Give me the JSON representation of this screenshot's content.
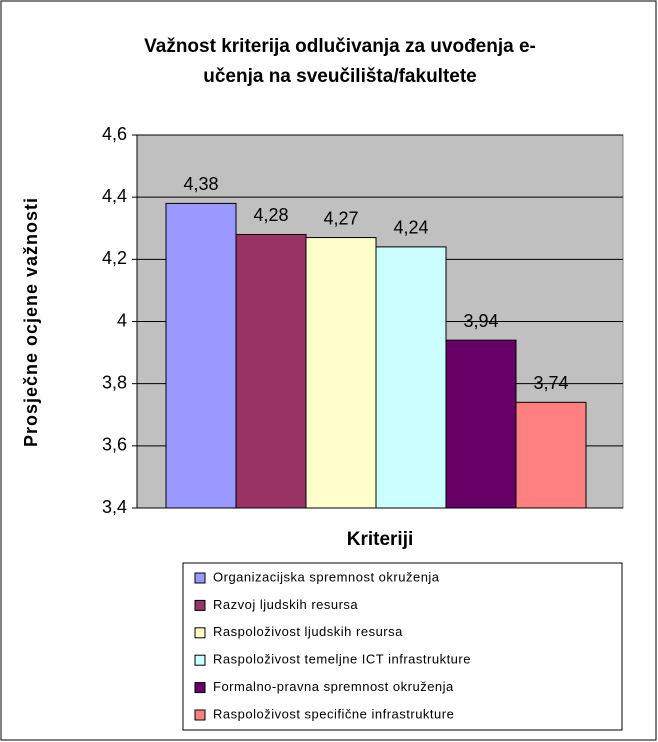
{
  "chart_data": {
    "type": "bar",
    "title": [
      "Važnost kriterija odlučivanja za uvođenja e-",
      "učenja na sveučilišta/fakultete"
    ],
    "y_label": "Prosječne ocjene važnosti",
    "x_label": "Kriteriji",
    "series": [
      {
        "name": "Organizacijska spremnost okruženja",
        "color": "#9999ff",
        "values": [
          4.38
        ],
        "value_labels": [
          "4,38"
        ]
      },
      {
        "name": "Razvoj ljudskih resursa",
        "color": "#993366",
        "values": [
          4.28
        ],
        "value_labels": [
          "4,28"
        ]
      },
      {
        "name": "Raspoloživost ljudskih resursa",
        "color": "#ffffcc",
        "values": [
          4.27
        ],
        "value_labels": [
          "4,27"
        ]
      },
      {
        "name": "Raspoloživost temeljne ICT infrastrukture",
        "color": "#ccffff",
        "values": [
          4.24
        ],
        "value_labels": [
          "4,24"
        ]
      },
      {
        "name": "Formalno-pravna spremnost okruženja",
        "color": "#660066",
        "values": [
          3.94
        ],
        "value_labels": [
          "3,94"
        ]
      },
      {
        "name": "Raspoloživost specifične infrastrukture",
        "color": "#ff8080",
        "values": [
          3.74
        ],
        "value_labels": [
          "3,74"
        ]
      }
    ],
    "ylim": [
      3.4,
      4.6
    ],
    "yticks": [
      {
        "value": 3.4,
        "label": "3,4"
      },
      {
        "value": 3.6,
        "label": "3,6"
      },
      {
        "value": 3.8,
        "label": "3,8"
      },
      4,
      {
        "value": 4.2,
        "label": "4,2"
      },
      {
        "value": 4.4,
        "label": "4,4"
      },
      {
        "value": 4.6,
        "label": "4,6"
      }
    ],
    "grid": true,
    "plot_background": "#c0c0c0",
    "legend": "bottom"
  }
}
